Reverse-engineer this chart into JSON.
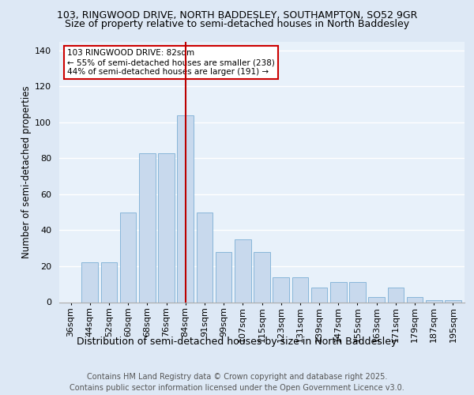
{
  "title1": "103, RINGWOOD DRIVE, NORTH BADDESLEY, SOUTHAMPTON, SO52 9GR",
  "title2": "Size of property relative to semi-detached houses in North Baddesley",
  "xlabel": "Distribution of semi-detached houses by size in North Baddesley",
  "ylabel": "Number of semi-detached properties",
  "categories": [
    "36sqm",
    "44sqm",
    "52sqm",
    "60sqm",
    "68sqm",
    "76sqm",
    "84sqm",
    "91sqm",
    "99sqm",
    "107sqm",
    "115sqm",
    "123sqm",
    "131sqm",
    "139sqm",
    "147sqm",
    "155sqm",
    "163sqm",
    "171sqm",
    "179sqm",
    "187sqm",
    "195sqm"
  ],
  "values": [
    0,
    22,
    22,
    50,
    83,
    83,
    104,
    50,
    28,
    35,
    28,
    14,
    14,
    8,
    11,
    11,
    3,
    8,
    3,
    1,
    1
  ],
  "bar_color": "#c8d9ed",
  "bar_edge_color": "#7bafd4",
  "ylim": [
    0,
    145
  ],
  "yticks": [
    0,
    20,
    40,
    60,
    80,
    100,
    120,
    140
  ],
  "vline_x_idx": 6,
  "vline_color": "#bb0000",
  "annotation_line1": "103 RINGWOOD DRIVE: 82sqm",
  "annotation_line2": "← 55% of semi-detached houses are smaller (238)",
  "annotation_line3": "44% of semi-detached houses are larger (191) →",
  "annotation_box_color": "#ffffff",
  "annotation_box_edge": "#cc0000",
  "footnote": "Contains HM Land Registry data © Crown copyright and database right 2025.\nContains public sector information licensed under the Open Government Licence v3.0.",
  "bg_color": "#dde8f5",
  "plot_bg_color": "#e8f1fa",
  "title1_fontsize": 9,
  "title2_fontsize": 9,
  "xlabel_fontsize": 9,
  "ylabel_fontsize": 8.5,
  "tick_fontsize": 8,
  "footnote_fontsize": 7,
  "annotation_fontsize": 7.5
}
